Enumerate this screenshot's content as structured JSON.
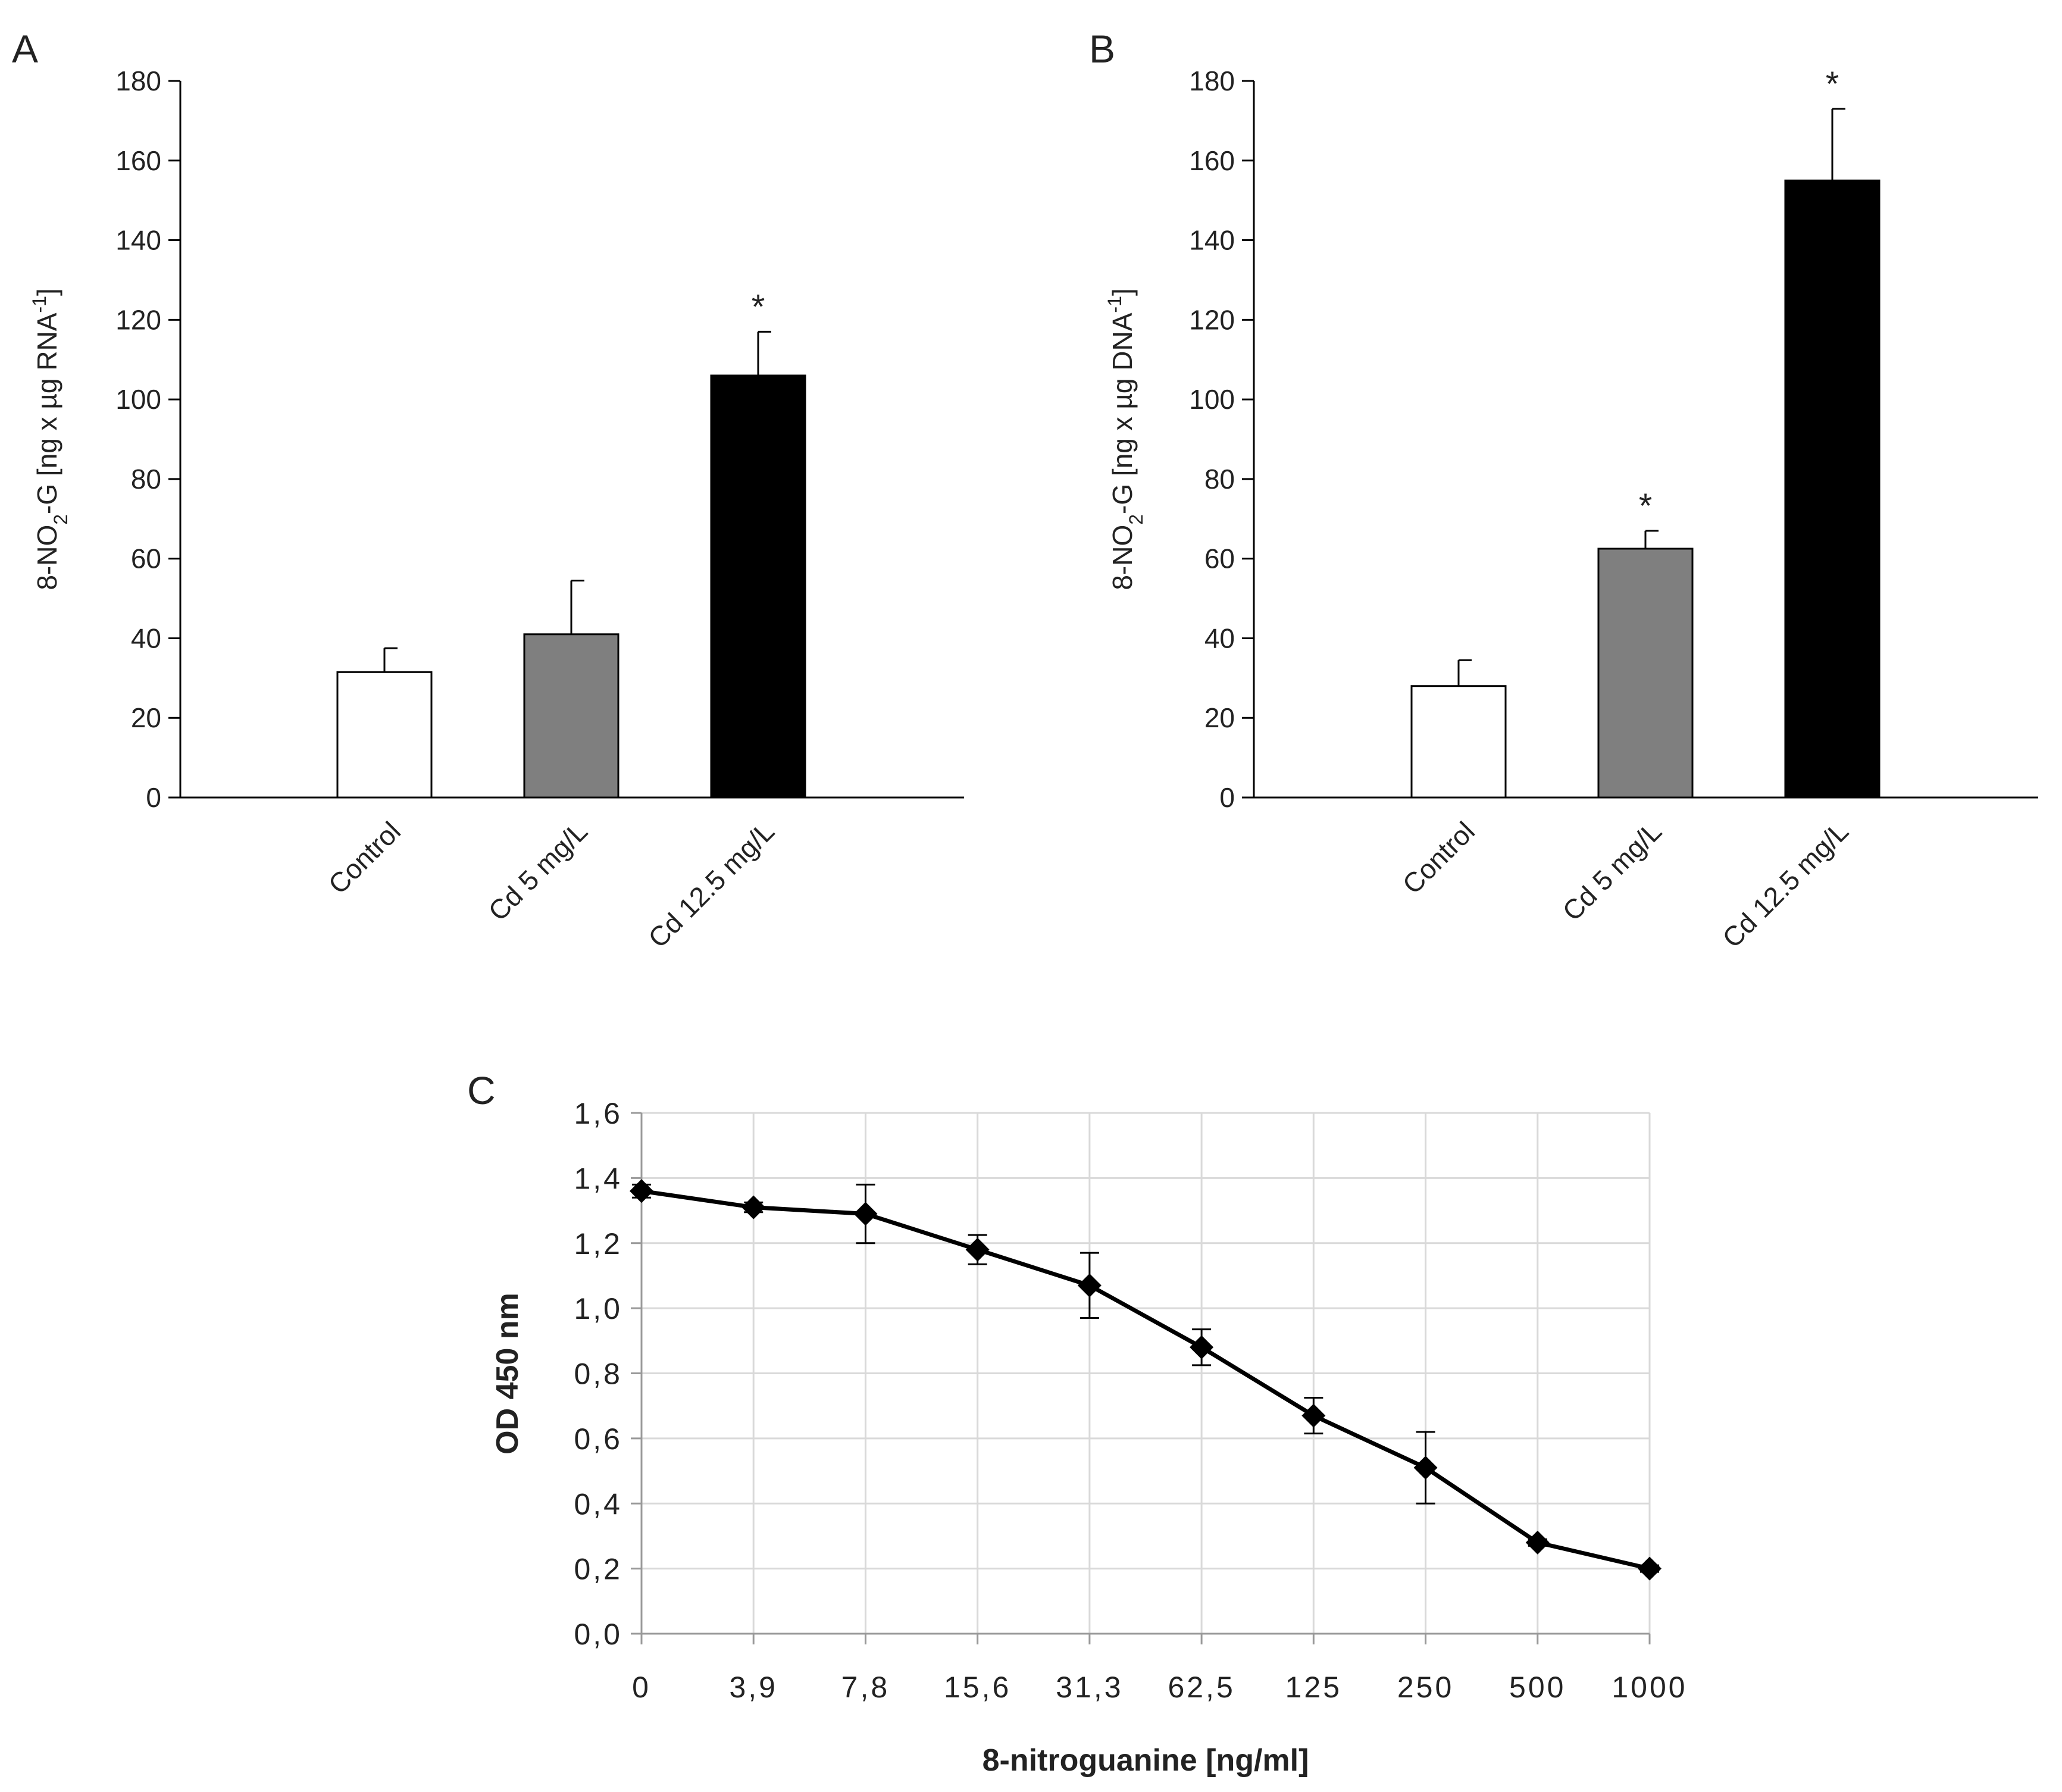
{
  "chart_data": [
    {
      "panel": "A",
      "type": "bar",
      "categories": [
        "Control",
        "Cd 5 mg/L",
        "Cd 12.5 mg/L"
      ],
      "values": [
        31.5,
        41,
        106
      ],
      "errors": [
        6,
        13.5,
        11
      ],
      "significance": [
        "",
        "",
        "*"
      ],
      "bar_colors": [
        "#ffffff",
        "#7f7f7f",
        "#000000"
      ],
      "ylabel_prefix": "8-NO",
      "ylabel_sub": "2",
      "ylabel_middle": "-G [ng x µg RNA",
      "ylabel_sup": "-1",
      "ylabel_suffix": "]",
      "ylim": [
        0,
        180
      ],
      "yticks": [
        "0",
        "20",
        "40",
        "60",
        "80",
        "100",
        "120",
        "140",
        "160",
        "180"
      ]
    },
    {
      "panel": "B",
      "type": "bar",
      "categories": [
        "Control",
        "Cd 5 mg/L",
        "Cd 12.5 mg/L"
      ],
      "values": [
        28,
        62.5,
        155
      ],
      "errors": [
        6.5,
        4.5,
        18
      ],
      "significance": [
        "",
        "*",
        "*"
      ],
      "bar_colors": [
        "#ffffff",
        "#7f7f7f",
        "#000000"
      ],
      "ylabel_prefix": "8-NO",
      "ylabel_sub": "2",
      "ylabel_middle": "-G [ng x µg DNA",
      "ylabel_sup": "-1",
      "ylabel_suffix": "]",
      "ylim": [
        0,
        180
      ],
      "yticks": [
        "0",
        "20",
        "40",
        "60",
        "80",
        "100",
        "120",
        "140",
        "160",
        "180"
      ]
    },
    {
      "panel": "C",
      "type": "line",
      "categories": [
        "0",
        "3,9",
        "7,8",
        "15,6",
        "31,3",
        "62,5",
        "125",
        "250",
        "500",
        "1000"
      ],
      "values": [
        1.36,
        1.31,
        1.29,
        1.18,
        1.07,
        0.88,
        0.67,
        0.51,
        0.28,
        0.2
      ],
      "errors": [
        0.02,
        0.015,
        0.09,
        0.045,
        0.1,
        0.055,
        0.055,
        0.11,
        0.01,
        0.01
      ],
      "xlabel": "8-nitroguanine [ng/ml]",
      "ylabel": "OD 450  nm",
      "ylim": [
        0,
        1.6
      ],
      "yticks": [
        "0,0",
        "0,2",
        "0,4",
        "0,6",
        "0,8",
        "1,0",
        "1,2",
        "1,4",
        "1,6"
      ],
      "grid": true,
      "marker": "diamond",
      "line_color": "#000000"
    }
  ]
}
